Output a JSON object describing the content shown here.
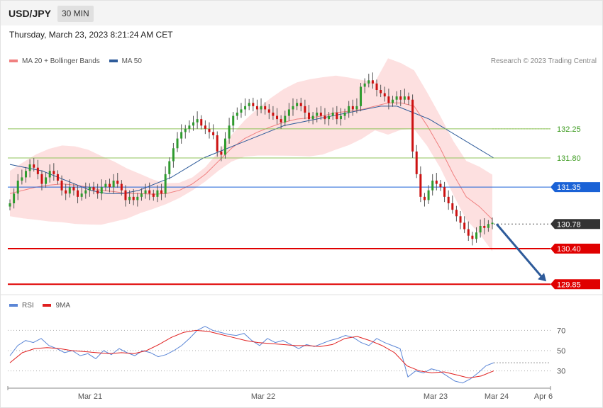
{
  "header": {
    "symbol": "USD/JPY",
    "timeframe": "30 MIN"
  },
  "datetime": "Thursday, March 23, 2023 8:21:24 AM CET",
  "copyright": "Research © 2023 Trading Central",
  "legend_main": [
    {
      "label": "MA 20 + Bollinger Bands",
      "color": "#f08080"
    },
    {
      "label": "MA 50",
      "color": "#2e5b9a"
    }
  ],
  "legend_rsi": [
    {
      "label": "RSI",
      "color": "#5b86d6"
    },
    {
      "label": "9MA",
      "color": "#e02020"
    }
  ],
  "colors": {
    "up": "#2e9b2e",
    "down": "#cc1111",
    "band": "#fde0e0",
    "resistance": "#8fc35a",
    "pivot": "#1a62d6",
    "support": "#e00000",
    "current": "#333333",
    "arrow": "#2e5b9a"
  },
  "chart_data": {
    "type": "candlestick",
    "symbol": "USD/JPY",
    "interval": "30 MIN",
    "ylim": [
      129.7,
      133.2
    ],
    "x_ticks": [
      "Mar 21",
      "Mar 22",
      "Mar 23",
      "Mar 24",
      "Apr 6"
    ],
    "levels": [
      {
        "label": "132.25",
        "value": 132.25,
        "type": "resistance"
      },
      {
        "label": "131.80",
        "value": 131.8,
        "type": "resistance"
      },
      {
        "label": "131.35",
        "value": 131.35,
        "type": "pivot"
      },
      {
        "label": "130.78",
        "value": 130.78,
        "type": "current"
      },
      {
        "label": "130.40",
        "value": 130.4,
        "type": "support"
      },
      {
        "label": "129.85",
        "value": 129.85,
        "type": "support"
      }
    ],
    "closes": [
      131.1,
      131.25,
      131.45,
      131.5,
      131.6,
      131.7,
      131.65,
      131.55,
      131.4,
      131.5,
      131.6,
      131.55,
      131.45,
      131.3,
      131.25,
      131.35,
      131.3,
      131.2,
      131.25,
      131.3,
      131.35,
      131.3,
      131.25,
      131.35,
      131.4,
      131.35,
      131.45,
      131.4,
      131.3,
      131.15,
      131.2,
      131.15,
      131.2,
      131.25,
      131.3,
      131.25,
      131.2,
      131.3,
      131.25,
      131.55,
      131.75,
      131.95,
      132.1,
      132.2,
      132.25,
      132.3,
      132.35,
      132.4,
      132.3,
      132.25,
      132.2,
      132.15,
      131.9,
      131.85,
      132.1,
      132.3,
      132.45,
      132.5,
      132.55,
      132.6,
      132.65,
      132.6,
      132.55,
      132.6,
      132.55,
      132.5,
      132.45,
      132.4,
      132.35,
      132.45,
      132.55,
      132.6,
      132.65,
      132.6,
      132.5,
      132.4,
      132.45,
      132.5,
      132.45,
      132.4,
      132.45,
      132.5,
      132.4,
      132.45,
      132.5,
      132.6,
      132.55,
      132.6,
      132.9,
      132.95,
      133.0,
      132.95,
      132.85,
      132.8,
      132.75,
      132.65,
      132.7,
      132.75,
      132.7,
      132.75,
      132.7,
      131.9,
      131.55,
      131.2,
      131.15,
      131.3,
      131.45,
      131.4,
      131.35,
      131.2,
      131.1,
      131.0,
      130.9,
      130.8,
      130.7,
      130.6,
      130.55,
      130.65,
      130.75,
      130.72,
      130.78,
      130.8
    ],
    "ma20": [
      131.25,
      131.3,
      131.35,
      131.38,
      131.4,
      131.38,
      131.35,
      131.3,
      131.28,
      131.25,
      131.25,
      131.24,
      131.25,
      131.3,
      131.4,
      131.55,
      131.75,
      131.95,
      132.1,
      132.2,
      132.28,
      132.35,
      132.4,
      132.42,
      132.45,
      132.5,
      132.52,
      132.55,
      132.6,
      132.65,
      132.65,
      132.6,
      132.3,
      131.95,
      131.55,
      131.2,
      131.05,
      130.85
    ],
    "ma50": [
      131.7,
      131.65,
      131.6,
      131.5,
      131.4,
      131.3,
      131.25,
      131.25,
      131.3,
      131.4,
      131.5,
      131.65,
      131.8,
      131.9,
      132.0,
      132.1,
      132.2,
      132.3,
      132.35,
      132.4,
      132.45,
      132.5,
      132.55,
      132.6,
      132.6,
      132.5,
      132.4,
      132.25,
      132.1,
      131.95,
      131.8
    ],
    "rsi": {
      "levels": [
        {
          "label": "70",
          "value": 70
        },
        {
          "label": "50",
          "value": 50
        },
        {
          "label": "30",
          "value": 30
        }
      ],
      "ylim": [
        15,
        85
      ],
      "rsi": [
        45,
        55,
        60,
        58,
        62,
        55,
        52,
        48,
        50,
        45,
        47,
        42,
        50,
        46,
        52,
        48,
        45,
        50,
        48,
        44,
        46,
        50,
        55,
        62,
        70,
        74,
        70,
        68,
        66,
        65,
        67,
        60,
        55,
        62,
        58,
        60,
        56,
        52,
        56,
        54,
        57,
        60,
        62,
        65,
        63,
        58,
        55,
        62,
        58,
        55,
        52,
        24,
        30,
        28,
        32,
        30,
        25,
        20,
        18,
        22,
        28,
        35,
        38
      ],
      "ma9": [
        38,
        48,
        52,
        53,
        52,
        50,
        49,
        48,
        47,
        48,
        47,
        50,
        56,
        63,
        68,
        70,
        69,
        66,
        63,
        60,
        58,
        57,
        56,
        55,
        55,
        54,
        56,
        62,
        64,
        60,
        55,
        48,
        35,
        30,
        28,
        29,
        26,
        23,
        25,
        30
      ]
    }
  }
}
